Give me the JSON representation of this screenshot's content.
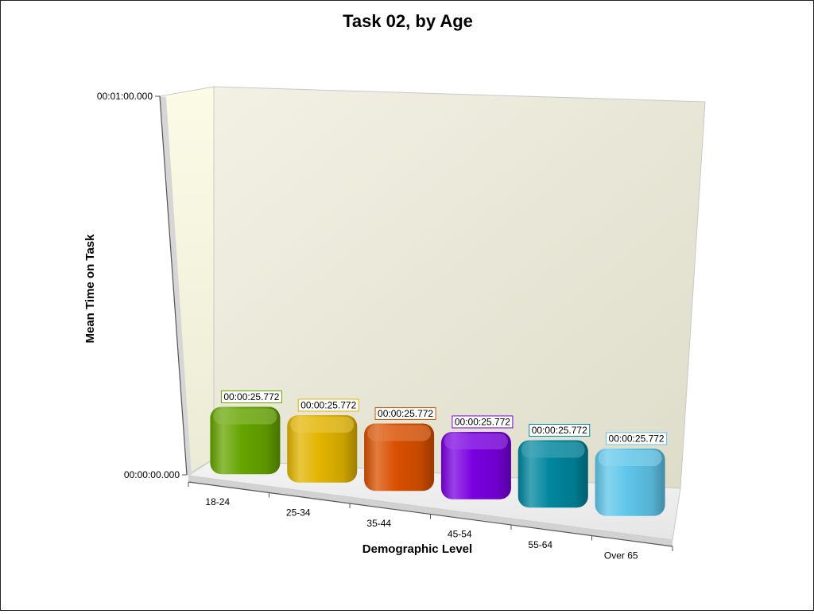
{
  "chart_data": {
    "type": "bar",
    "title": "Task 02, by Age",
    "xlabel": "Demographic Level",
    "ylabel": "Mean Time on Task",
    "categories": [
      "18-24",
      "25-34",
      "35-44",
      "45-54",
      "55-64",
      "Over 65"
    ],
    "values": [
      25.772,
      25.772,
      25.772,
      25.772,
      25.772,
      25.772
    ],
    "value_labels": [
      "00:00:25.772",
      "00:00:25.772",
      "00:00:25.772",
      "00:00:25.772",
      "00:00:25.772",
      "00:00:25.772"
    ],
    "y_ticks": [
      {
        "value": 0,
        "label": "00:00:00.000"
      },
      {
        "value": 60,
        "label": "00:01:00.000"
      }
    ],
    "ylim": [
      0,
      60
    ],
    "grid": false,
    "legend": "none",
    "colors": [
      "#66a400",
      "#e2b400",
      "#d95000",
      "#7a00e0",
      "#00869e",
      "#5fc6ea"
    ]
  }
}
